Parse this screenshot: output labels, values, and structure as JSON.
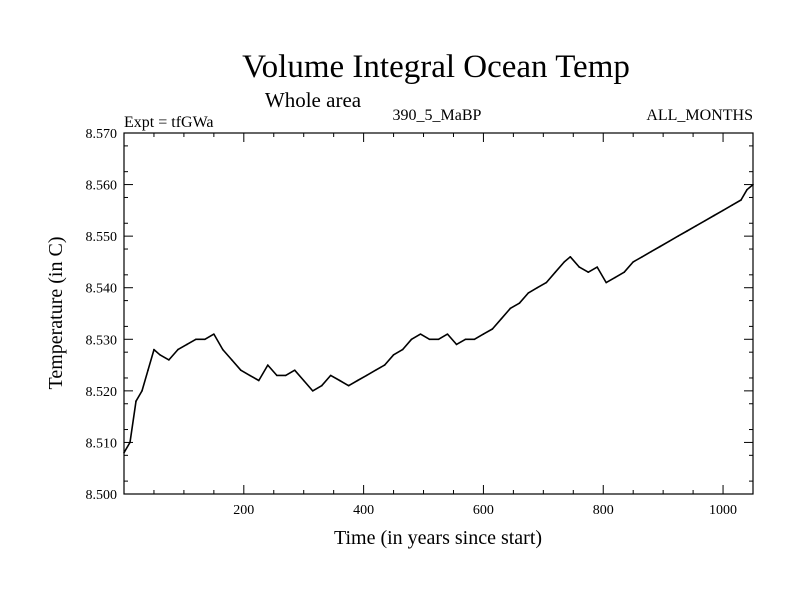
{
  "chart_data": {
    "type": "line",
    "title": "Volume Integral Ocean Temp",
    "subtitle": "Whole area",
    "expt_label": "Expt = tfGWa",
    "run_label": "390_5_MaBP",
    "months_label": "ALL_MONTHS",
    "xlabel": "Time (in years since start)",
    "ylabel": "Temperature (in C)",
    "xlim": [
      0,
      1050
    ],
    "ylim": [
      8.5,
      8.57
    ],
    "xticks": [
      200,
      400,
      600,
      800,
      1000
    ],
    "yticks": [
      "8.500",
      "8.510",
      "8.520",
      "8.530",
      "8.540",
      "8.550",
      "8.560",
      "8.570"
    ],
    "grid": false,
    "series": [
      {
        "name": "Volume Integral Ocean Temp",
        "color": "#000000",
        "x": [
          0,
          10,
          20,
          30,
          40,
          50,
          60,
          75,
          90,
          105,
          120,
          135,
          150,
          165,
          180,
          195,
          210,
          225,
          240,
          255,
          270,
          285,
          300,
          315,
          330,
          345,
          360,
          375,
          390,
          405,
          420,
          435,
          450,
          465,
          480,
          495,
          510,
          525,
          540,
          555,
          570,
          585,
          600,
          615,
          630,
          645,
          660,
          675,
          690,
          705,
          720,
          735,
          745,
          760,
          775,
          790,
          805,
          820,
          835,
          850,
          865,
          880,
          895,
          910,
          925,
          940,
          955,
          970,
          985,
          1000,
          1015,
          1030,
          1040,
          1050
        ],
        "values": [
          8.508,
          8.51,
          8.518,
          8.52,
          8.524,
          8.528,
          8.527,
          8.526,
          8.528,
          8.529,
          8.53,
          8.53,
          8.531,
          8.528,
          8.526,
          8.524,
          8.523,
          8.522,
          8.525,
          8.523,
          8.523,
          8.524,
          8.522,
          8.52,
          8.521,
          8.523,
          8.522,
          8.521,
          8.522,
          8.523,
          8.524,
          8.525,
          8.527,
          8.528,
          8.53,
          8.531,
          8.53,
          8.53,
          8.531,
          8.529,
          8.53,
          8.53,
          8.531,
          8.532,
          8.534,
          8.536,
          8.537,
          8.539,
          8.54,
          8.541,
          8.543,
          8.545,
          8.546,
          8.544,
          8.543,
          8.544,
          8.541,
          8.542,
          8.543,
          8.545,
          8.546,
          8.547,
          8.548,
          8.549,
          8.55,
          8.551,
          8.552,
          8.553,
          8.554,
          8.555,
          8.556,
          8.557,
          8.559,
          8.56
        ]
      }
    ]
  }
}
